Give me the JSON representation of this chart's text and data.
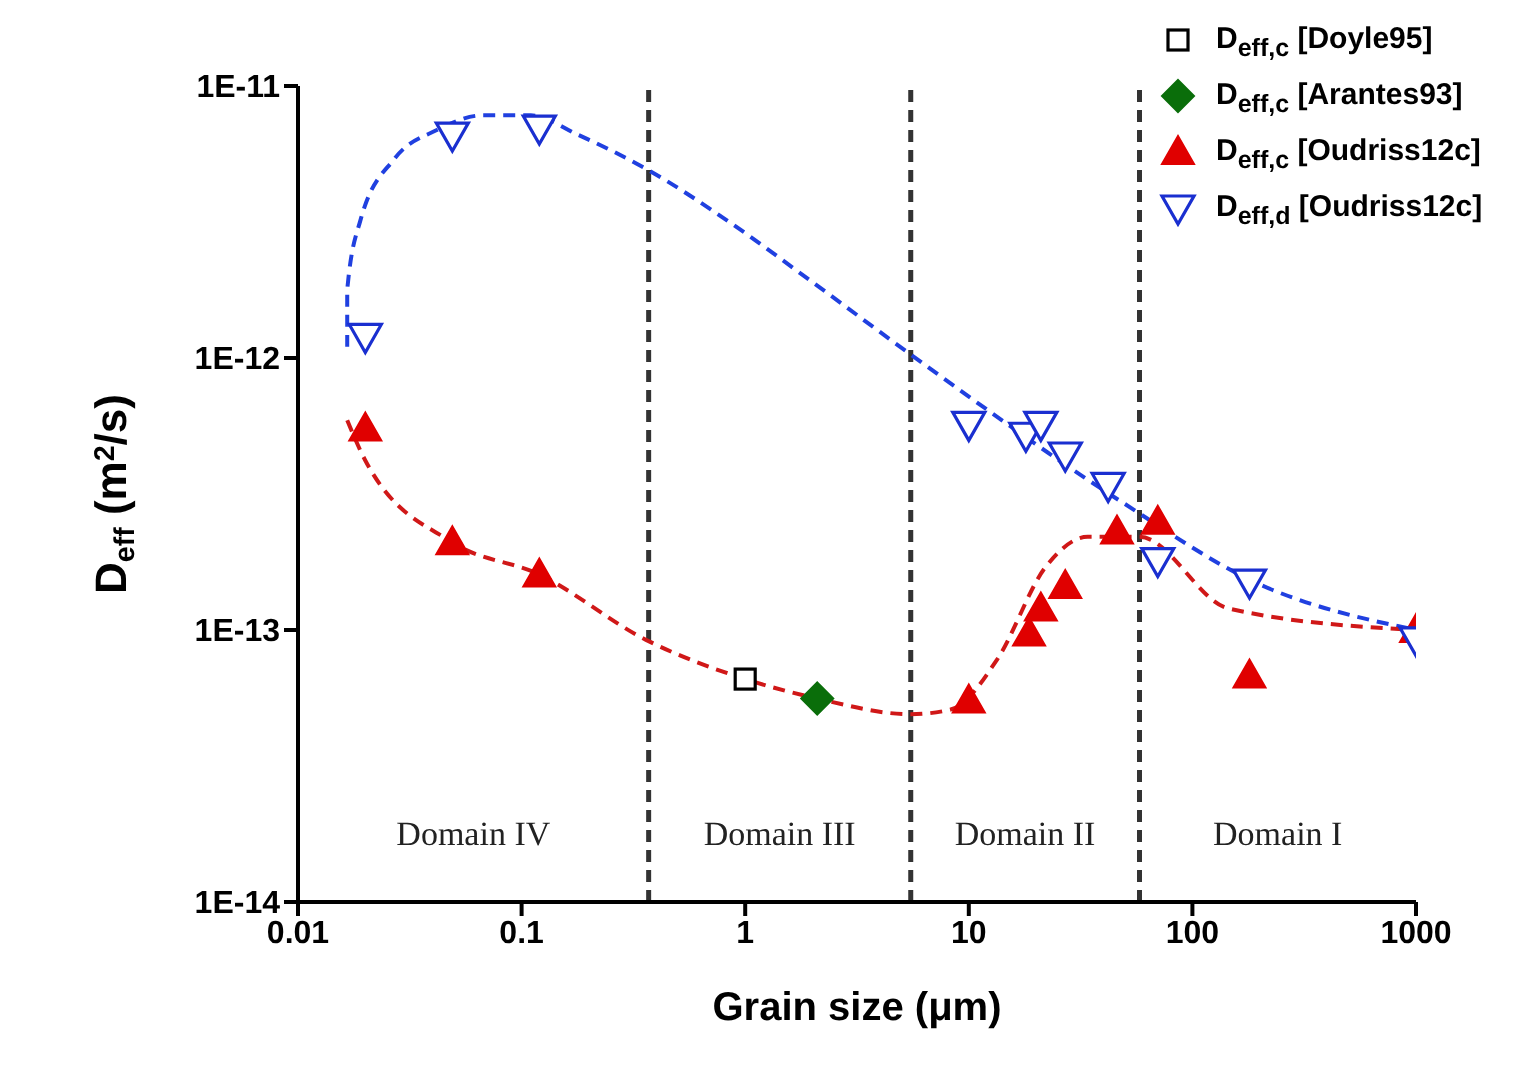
{
  "chart_data": {
    "type": "scatter",
    "xlabel": "Grain size (μm)",
    "ylabel": "D$_{eff}$ (m$^{2}$/s)",
    "log": "xy",
    "grid": false,
    "legend": "top right",
    "xlim": [
      0.01,
      1000
    ],
    "xticks": [
      0.01,
      0.1,
      1,
      10,
      100,
      1000
    ],
    "ylim": [
      1e-14,
      1e-11
    ],
    "yticks": [
      {
        "value": 1e-14,
        "label": "1E-14"
      },
      {
        "value": 1e-13,
        "label": "1E-13"
      },
      {
        "value": 1e-12,
        "label": "1E-12"
      },
      {
        "value": 1e-11,
        "label": "1E-11"
      }
    ],
    "series": [
      {
        "name": "D$_{eff,c}$ [Doyle95]",
        "marker": "square",
        "color": "#000000",
        "x": [
          1.0
        ],
        "values": [
          6.6e-14
        ]
      },
      {
        "name": "D$_{eff,c}$ [Arantes93]",
        "marker": "diamond",
        "color": "#0a6e0a",
        "x": [
          2.1
        ],
        "values": [
          5.6e-14
        ]
      },
      {
        "name": "D$_{eff,c}$ [Oudriss12c]",
        "marker": "triangle",
        "color": "#e00000",
        "x": [
          0.02,
          0.049,
          0.12,
          10,
          18.6,
          21,
          27,
          46,
          70,
          180,
          1000
        ],
        "values": [
          5.5e-13,
          2.1e-13,
          1.6e-13,
          5.5e-14,
          9.7e-14,
          1.2e-13,
          1.45e-13,
          2.3e-13,
          2.5e-13,
          6.8e-14,
          1e-13
        ]
      },
      {
        "name": "D$_{eff,d}$ [Oudriss12c]",
        "marker": "triangle",
        "color": "#1a2fd0",
        "x": [
          0.02,
          0.049,
          0.12,
          10,
          18,
          21,
          27,
          42,
          70,
          180,
          1000
        ],
        "values": [
          1.2e-12,
          6.6e-12,
          7e-12,
          5.7e-13,
          5.2e-13,
          5.7e-13,
          4.4e-13,
          3.4e-13,
          1.8e-13,
          1.5e-13,
          9.2e-14
        ]
      },
      {
        "type": "line",
        "line_style": "dashed",
        "marker": "none",
        "color": "#2040e0",
        "x": [
          0.0166,
          0.0166,
          0.019,
          0.027,
          0.042,
          0.067,
          0.11,
          0.18,
          0.37,
          0.88,
          2.0,
          5.5,
          47,
          190,
          1000
        ],
        "values": [
          1.1e-12,
          1.78e-12,
          3.2e-12,
          5.4e-12,
          6.9e-12,
          7.8e-12,
          7.8e-12,
          6.6e-12,
          4.9e-12,
          3.1e-12,
          1.9e-12,
          1.03e-12,
          3e-13,
          1.5e-13,
          1e-13
        ]
      },
      {
        "type": "line",
        "line_style": "dashed",
        "marker": "none",
        "color": "#d01818",
        "x": [
          0.0166,
          0.02,
          0.049,
          0.12,
          0.36,
          1.0,
          2.1,
          5.5,
          8.3,
          13.4,
          22,
          34,
          58,
          145,
          1000
        ],
        "values": [
          5.9e-13,
          4.2e-13,
          2.1e-13,
          1.6e-13,
          9.2e-14,
          6.6e-14,
          5.6e-14,
          4.9e-14,
          5.1e-14,
          7.8e-14,
          1.7e-13,
          2.2e-13,
          2.2e-13,
          1.2e-13,
          1e-13
        ]
      }
    ],
    "ref_lines": [
      {
        "axis": "x",
        "value": 0.37,
        "label": null,
        "color": "#333333",
        "line_style": "dashed"
      },
      {
        "axis": "x",
        "value": 5.5,
        "label": null,
        "color": "#333333",
        "line_style": "dashed"
      },
      {
        "axis": "x",
        "value": 58,
        "label": null,
        "color": "#333333",
        "line_style": "dashed"
      }
    ],
    "annotations": [
      "Domain IV",
      "Domain III",
      "Domain II",
      "Domain I"
    ]
  }
}
